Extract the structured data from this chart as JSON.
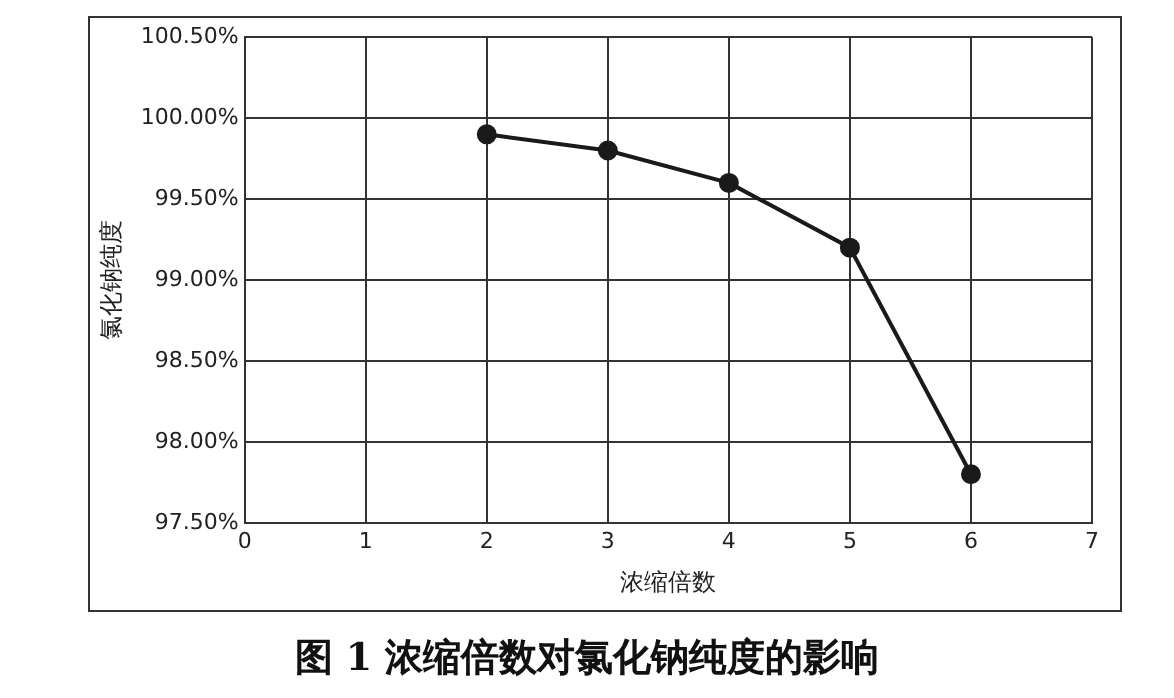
{
  "chart_data": {
    "type": "line",
    "title": "图 1 浓缩倍数对氯化钠纯度的影响",
    "xlabel": "浓缩倍数",
    "ylabel": "氯化钠纯度",
    "x": [
      2,
      3,
      4,
      5,
      6
    ],
    "series": [
      {
        "color": "#1a1a1a",
        "values": [
          99.9,
          99.8,
          99.6,
          99.2,
          97.8
        ]
      }
    ],
    "xlim": [
      0,
      7
    ],
    "xticks": [
      0,
      1,
      2,
      3,
      4,
      5,
      6,
      7
    ],
    "ylim": [
      97.5,
      100.5
    ],
    "yticks": [
      {
        "value": 97.5,
        "label": "97.50%"
      },
      {
        "value": 98,
        "label": "98.00%"
      },
      {
        "value": 98.5,
        "label": "98.50%"
      },
      {
        "value": 99,
        "label": "99.00%"
      },
      {
        "value": 99.5,
        "label": "99.50%"
      },
      {
        "value": 100,
        "label": "100.00%"
      },
      {
        "value": 100.5,
        "label": "100.50%"
      }
    ],
    "grid": true,
    "marker": "circle",
    "line_style": "solid",
    "legend": false
  }
}
